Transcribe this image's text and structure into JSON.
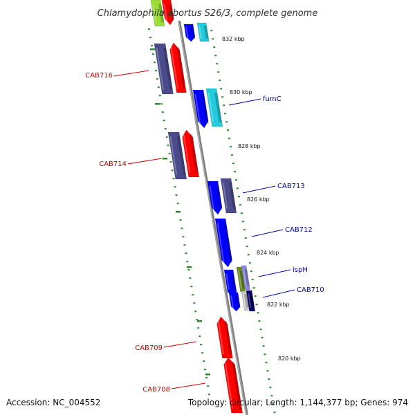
{
  "title": "Chlamydophila abortus S26/3, complete genome",
  "footer": {
    "accession": "Accession: NC_004552",
    "summary": "Topology: circular; Length: 1,144,377 bp; Genes: 974"
  },
  "colors": {
    "backbone": "#808080",
    "ticks": "#228b22",
    "reverse_label": "#cc0000",
    "forward_label": "#0000aa",
    "red": "#ff0000",
    "slate": "#4b4b8c",
    "blue": "#0000ff",
    "cyan": "#22ccdd",
    "olive": "#6b8e23",
    "lavender": "#8888dd",
    "lightgreen": "#99dd33",
    "gray": "#cccccc",
    "navy": "#000066"
  },
  "scale": {
    "unit": "kbp",
    "labels": [
      {
        "value": 832,
        "text": "832 kbp"
      },
      {
        "value": 830,
        "text": "830 kbp"
      },
      {
        "value": 828,
        "text": "828 kbp"
      },
      {
        "value": 826,
        "text": "826 kbp"
      },
      {
        "value": 824,
        "text": "824 kbp"
      },
      {
        "value": 822,
        "text": "822 kbp"
      },
      {
        "value": 820,
        "text": "820 kbp"
      }
    ]
  },
  "gene_labels": [
    {
      "text": "CAB716",
      "strand": "reverse"
    },
    {
      "text": "CAB714",
      "strand": "reverse"
    },
    {
      "text": "CAB709",
      "strand": "reverse"
    },
    {
      "text": "CAB708",
      "strand": "reverse"
    },
    {
      "text": "fumC",
      "strand": "forward"
    },
    {
      "text": "CAB713",
      "strand": "forward"
    },
    {
      "text": "CAB712",
      "strand": "forward"
    },
    {
      "text": "ispH",
      "strand": "forward"
    },
    {
      "text": "CAB710",
      "strand": "forward"
    }
  ]
}
